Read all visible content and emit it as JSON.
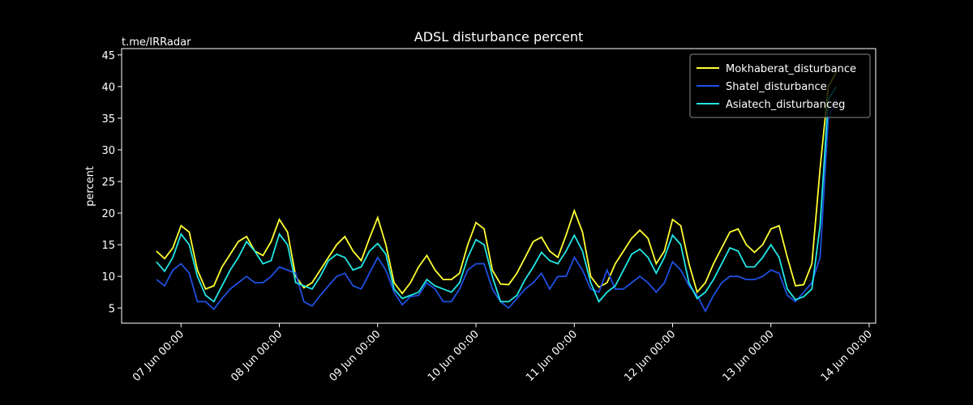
{
  "chart_data": {
    "type": "line",
    "title": "ADSL disturbance percent",
    "watermark": "t.me/IRRadar",
    "ylabel": "percent",
    "legend": "upper right",
    "x": [
      "06 Jun 18:00",
      "06 Jun 20:00",
      "06 Jun 22:00",
      "07 Jun 00:00",
      "07 Jun 02:00",
      "07 Jun 04:00",
      "07 Jun 06:00",
      "07 Jun 08:00",
      "07 Jun 10:00",
      "07 Jun 12:00",
      "07 Jun 14:00",
      "07 Jun 16:00",
      "07 Jun 18:00",
      "07 Jun 20:00",
      "07 Jun 22:00",
      "08 Jun 00:00",
      "08 Jun 02:00",
      "08 Jun 04:00",
      "08 Jun 06:00",
      "08 Jun 08:00",
      "08 Jun 10:00",
      "08 Jun 12:00",
      "08 Jun 14:00",
      "08 Jun 16:00",
      "08 Jun 18:00",
      "08 Jun 20:00",
      "08 Jun 22:00",
      "09 Jun 00:00",
      "09 Jun 02:00",
      "09 Jun 04:00",
      "09 Jun 06:00",
      "09 Jun 08:00",
      "09 Jun 10:00",
      "09 Jun 12:00",
      "09 Jun 14:00",
      "09 Jun 16:00",
      "09 Jun 18:00",
      "09 Jun 20:00",
      "09 Jun 22:00",
      "10 Jun 00:00",
      "10 Jun 02:00",
      "10 Jun 04:00",
      "10 Jun 06:00",
      "10 Jun 08:00",
      "10 Jun 10:00",
      "10 Jun 12:00",
      "10 Jun 14:00",
      "10 Jun 16:00",
      "10 Jun 18:00",
      "10 Jun 20:00",
      "10 Jun 22:00",
      "11 Jun 00:00",
      "11 Jun 02:00",
      "11 Jun 04:00",
      "11 Jun 06:00",
      "11 Jun 08:00",
      "11 Jun 10:00",
      "11 Jun 12:00",
      "11 Jun 14:00",
      "11 Jun 16:00",
      "11 Jun 18:00",
      "11 Jun 20:00",
      "11 Jun 22:00",
      "12 Jun 00:00",
      "12 Jun 02:00",
      "12 Jun 04:00",
      "12 Jun 06:00",
      "12 Jun 08:00",
      "12 Jun 10:00",
      "12 Jun 12:00",
      "12 Jun 14:00",
      "12 Jun 16:00",
      "12 Jun 18:00",
      "12 Jun 20:00",
      "12 Jun 22:00",
      "13 Jun 00:00",
      "13 Jun 02:00",
      "13 Jun 04:00",
      "13 Jun 06:00",
      "13 Jun 08:00",
      "13 Jun 10:00",
      "13 Jun 12:00",
      "13 Jun 14:00",
      "13 Jun 16:00"
    ],
    "series": [
      {
        "name": "Mokhaberat_disturbance",
        "color": "#ffff33",
        "values": [
          14,
          12.8,
          14.5,
          18,
          17,
          11,
          8,
          8.5,
          11.5,
          13.5,
          15.5,
          16.3,
          14,
          13.3,
          15.5,
          19,
          17,
          10,
          8.2,
          9,
          11,
          13,
          15,
          16.3,
          14,
          12.5,
          16,
          19.3,
          15,
          9,
          7.3,
          9,
          11.5,
          13.3,
          11,
          9.5,
          9.5,
          10.5,
          15,
          18.5,
          17.5,
          11,
          8.8,
          8.7,
          10.5,
          13,
          15.5,
          16.2,
          14,
          13,
          16.5,
          20.4,
          17,
          10,
          8.3,
          9,
          12,
          14,
          16,
          17.3,
          16,
          12,
          14,
          19,
          18,
          12,
          7.5,
          9,
          12,
          14.5,
          17,
          17.5,
          15,
          13.8,
          15,
          17.5,
          18,
          13,
          8.5,
          8.7,
          12,
          27,
          40,
          42.3
        ]
      },
      {
        "name": "Shatel_disturbance",
        "color": "#1f4fe0",
        "values": [
          9.5,
          8.5,
          11,
          12,
          10.5,
          6,
          6,
          4.8,
          6.5,
          8,
          9,
          10,
          9,
          9,
          10,
          11.5,
          11,
          10.5,
          6,
          5.3,
          7,
          8.5,
          10,
          10.5,
          8.5,
          8,
          10.5,
          13,
          11,
          7.5,
          5.5,
          6.8,
          7,
          9,
          8,
          6,
          6,
          8,
          11,
          12,
          12,
          8,
          6,
          5,
          6.5,
          8,
          9,
          10.5,
          8,
          10,
          10,
          13,
          11,
          8,
          7.5,
          11,
          8,
          8,
          9,
          10,
          9,
          7.5,
          9,
          12.3,
          11,
          8.5,
          7,
          4.5,
          7,
          9,
          10,
          10,
          9.5,
          9.5,
          10,
          11,
          10.5,
          7,
          6,
          7.5,
          9,
          13,
          35,
          38
        ]
      },
      {
        "name": "Asiatech_disturbanceg",
        "color": "#22e6e6",
        "values": [
          12.3,
          10.8,
          13,
          16.7,
          15,
          10,
          7,
          6,
          8.5,
          11,
          13,
          15.5,
          14,
          12,
          12.5,
          16.7,
          15,
          9,
          8.5,
          8,
          10,
          12.5,
          13.5,
          13,
          11,
          11.5,
          14,
          15.2,
          13.5,
          8,
          6.5,
          7,
          7.5,
          9.5,
          8.5,
          8,
          7.5,
          9,
          13,
          15.8,
          15,
          10,
          6,
          6,
          7,
          9.5,
          11.5,
          13.8,
          12.5,
          12,
          14,
          16.5,
          14,
          9,
          6,
          7.5,
          8.5,
          11,
          13.5,
          14.3,
          13,
          10.5,
          13,
          16.5,
          15,
          9,
          6.5,
          7.5,
          9.5,
          12,
          14.5,
          14,
          11.5,
          11.5,
          13,
          15,
          13,
          8,
          6.3,
          6.8,
          8,
          18,
          38,
          40
        ]
      }
    ],
    "xlim": [
      "06 Jun 09:30",
      "14 Jun 01:35"
    ],
    "xticks": [
      "07 Jun 00:00",
      "08 Jun 00:00",
      "09 Jun 00:00",
      "10 Jun 00:00",
      "11 Jun 00:00",
      "12 Jun 00:00",
      "13 Jun 00:00",
      "14 Jun 00:00"
    ],
    "ylim": [
      2.6,
      46
    ],
    "yticks": [
      5,
      10,
      15,
      20,
      25,
      30,
      35,
      40,
      45
    ]
  }
}
